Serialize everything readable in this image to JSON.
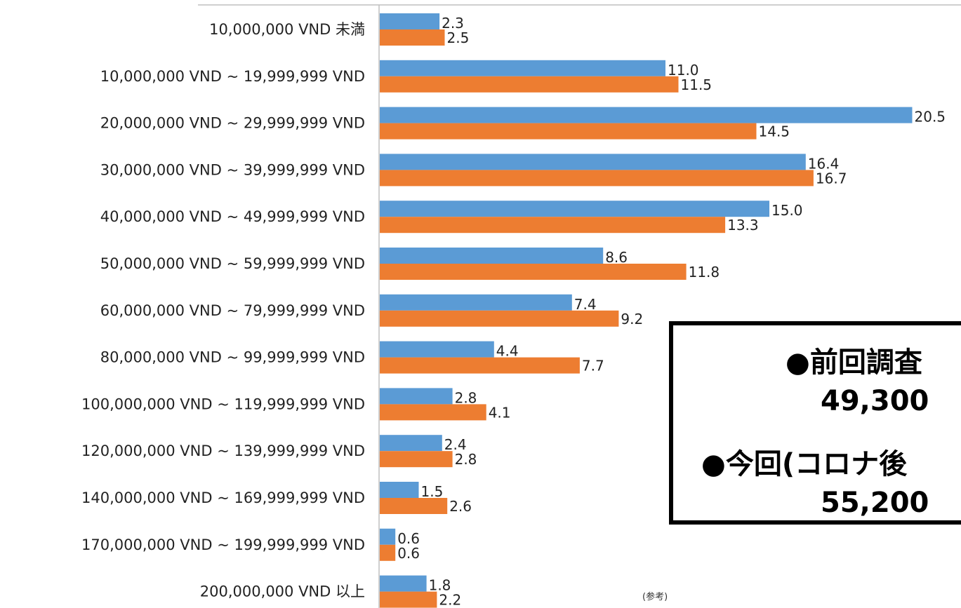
{
  "chart_data": {
    "type": "bar",
    "orientation": "horizontal",
    "categories": [
      "10,000,000 VND 未満",
      "10,000,000 VND ~ 19,999,999 VND",
      "20,000,000 VND ~ 29,999,999 VND",
      "30,000,000 VND ~ 39,999,999 VND",
      "40,000,000 VND ~ 49,999,999 VND",
      "50,000,000 VND ~ 59,999,999 VND",
      "60,000,000 VND ~ 79,999,999 VND",
      "80,000,000 VND ~ 99,999,999 VND",
      "100,000,000 VND ~ 119,999,999 VND",
      "120,000,000 VND ~ 139,999,999 VND",
      "140,000,000 VND ~ 169,999,999 VND",
      "170,000,000 VND ~ 199,999,999 VND",
      "200,000,000 VND 以上"
    ],
    "series": [
      {
        "color": "#5B9BD5",
        "values": [
          2.3,
          11.0,
          20.5,
          16.4,
          15.0,
          8.6,
          7.4,
          4.4,
          2.8,
          2.4,
          1.5,
          0.6,
          1.8
        ],
        "labels": [
          "2.3",
          "11.0",
          "20.5",
          "16.4",
          "15.0",
          "8.6",
          "7.4",
          "4.4",
          "2.8",
          "2.4",
          "1.5",
          "0.6",
          "1.8"
        ]
      },
      {
        "color": "#ED7D31",
        "values": [
          2.5,
          11.5,
          14.5,
          16.7,
          13.3,
          11.8,
          9.2,
          7.7,
          4.1,
          2.8,
          2.6,
          0.6,
          2.2
        ],
        "labels": [
          "2.5",
          "11.5",
          "14.5",
          "16.7",
          "13.3",
          "11.8",
          "9.2",
          "7.7",
          "4.1",
          "2.8",
          "2.6",
          "0.6",
          "2.2"
        ]
      }
    ],
    "title": "",
    "xlabel": "",
    "ylabel": "",
    "legend": "none",
    "grid": false
  },
  "annotation": {
    "line1": "●前回調査",
    "line2": "49,300",
    "line3": "●今回(コロナ後",
    "line4": "55,200"
  },
  "reference_note": "(参考)"
}
